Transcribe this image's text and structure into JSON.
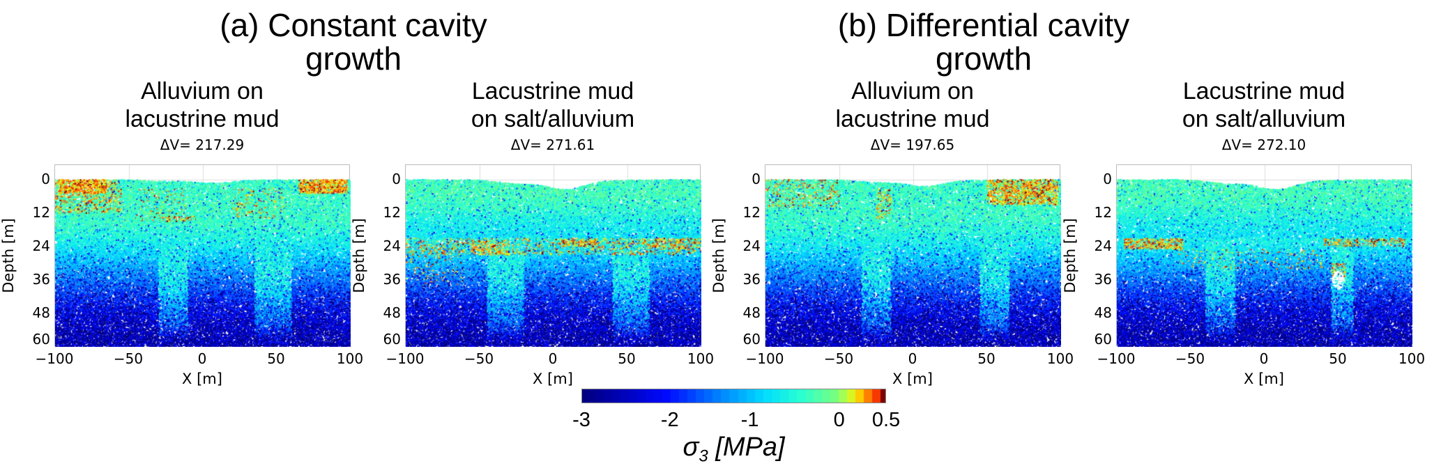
{
  "figure": {
    "group_titles": [
      "(a) Constant cavity\ngrowth",
      "(b) Differential cavity\ngrowth"
    ]
  },
  "chart_data": [
    {
      "type": "scatter",
      "group": "(a) Constant cavity growth",
      "title": "Alluvium on\nlacustrine mud",
      "annotation": "ΔV= 217.29",
      "xlabel": "X [m]",
      "ylabel": "Depth [m]",
      "xlim": [
        -100,
        100
      ],
      "ylim": [
        60,
        -5
      ],
      "xticks": [
        "−100",
        "−50",
        "0",
        "50",
        "100"
      ],
      "yticks": [
        "0",
        "12",
        "24",
        "36",
        "48",
        "60"
      ],
      "grid": true,
      "color_variable": "σ3 [MPa]"
    },
    {
      "type": "scatter",
      "group": "(a) Constant cavity growth",
      "title": "Lacustrine mud\non salt/alluvium",
      "annotation": "ΔV= 271.61",
      "xlabel": "X [m]",
      "ylabel": "Depth [m]",
      "xlim": [
        -100,
        100
      ],
      "ylim": [
        60,
        -5
      ],
      "xticks": [
        "−100",
        "−50",
        "0",
        "50",
        "100"
      ],
      "yticks": [
        "0",
        "12",
        "24",
        "36",
        "48",
        "60"
      ],
      "grid": true,
      "color_variable": "σ3 [MPa]"
    },
    {
      "type": "scatter",
      "group": "(b) Differential cavity growth",
      "title": "Alluvium on\nlacustrine mud",
      "annotation": "ΔV= 197.65",
      "xlabel": "X [m]",
      "ylabel": "Depth [m]",
      "xlim": [
        -100,
        100
      ],
      "ylim": [
        60,
        -5
      ],
      "xticks": [
        "−100",
        "−50",
        "0",
        "50",
        "100"
      ],
      "yticks": [
        "0",
        "12",
        "24",
        "36",
        "48",
        "60"
      ],
      "grid": true,
      "color_variable": "σ3 [MPa]"
    },
    {
      "type": "scatter",
      "group": "(b) Differential cavity growth",
      "title": "Lacustrine mud\non salt/alluvium",
      "annotation": "ΔV= 272.10",
      "xlabel": "X [m]",
      "ylabel": "Depth [m]",
      "xlim": [
        -100,
        100
      ],
      "ylim": [
        60,
        -5
      ],
      "xticks": [
        "−100",
        "−50",
        "0",
        "50",
        "100"
      ],
      "yticks": [
        "0",
        "12",
        "24",
        "36",
        "48",
        "60"
      ],
      "grid": true,
      "color_variable": "σ3 [MPa]"
    }
  ],
  "colorbar": {
    "label_symbol": "σ",
    "label_sub": "3",
    "label_unit": " [MPa]",
    "ticks": [
      {
        "value": -3,
        "label": "-3"
      },
      {
        "value": -2,
        "label": "-2"
      },
      {
        "value": -1,
        "label": "-1"
      },
      {
        "value": 0,
        "label": "0"
      },
      {
        "value": 0.5,
        "label": "0.5"
      }
    ],
    "range": [
      -3,
      0.5
    ],
    "colormap": "jet (discrete)",
    "colors": [
      "#00007f",
      "#0000ff",
      "#0080ff",
      "#00e5ff",
      "#7dff7a",
      "#ffdf00",
      "#ff4000",
      "#7f0000"
    ]
  }
}
